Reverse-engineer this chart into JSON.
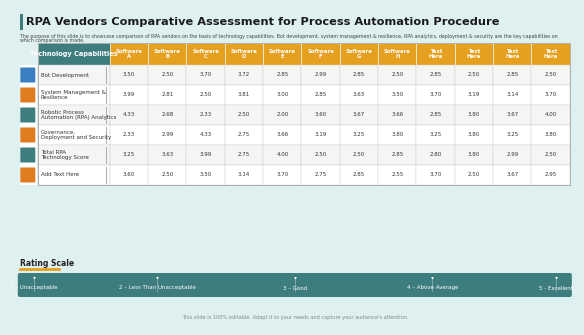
{
  "title": "RPA Vendors Comparative Assessment for Process Automation Procedure",
  "subtitle": "The purpose of this slide is to showcase comparison of RPA vendors on the basis of technology capabilities. Bot development, system management & resilience, RPA analytics, deployment & security are the key capabilities on which comparison is made.",
  "footer": "This slide is 100% editable. Adapt it to your needs and capture your audience's attention.",
  "col_headers": [
    "Technology Capabilities",
    "Software\nA",
    "Software\nB",
    "Software\nC",
    "Software\nD",
    "Software\nE",
    "Software\nF",
    "Software\nG",
    "Software\nH",
    "Text\nHere",
    "Text\nHere",
    "Text\nHere",
    "Text\nHere"
  ],
  "rows": [
    {
      "label": "Bot Development",
      "values": [
        3.5,
        2.5,
        3.7,
        3.72,
        2.85,
        2.99,
        2.85,
        2.5,
        2.85,
        2.5,
        2.85,
        2.5
      ]
    },
    {
      "label": "System Management &\nResilience",
      "values": [
        3.99,
        2.81,
        2.5,
        3.81,
        3.0,
        2.85,
        3.63,
        3.5,
        3.7,
        3.19,
        3.14,
        3.7
      ]
    },
    {
      "label": "Robotic Process\nAutomation (RPA) Analytics",
      "values": [
        4.33,
        2.68,
        2.33,
        2.5,
        2.0,
        3.6,
        3.67,
        3.66,
        2.85,
        3.8,
        3.67,
        4.0
      ]
    },
    {
      "label": "Governance,\nDeployment and Security",
      "values": [
        2.33,
        2.99,
        4.33,
        2.75,
        3.66,
        3.19,
        3.25,
        3.8,
        3.25,
        3.8,
        3.25,
        3.8
      ]
    },
    {
      "label": "Total RPA\nTechnology Score",
      "values": [
        3.25,
        3.63,
        3.99,
        2.75,
        4.0,
        2.5,
        2.5,
        2.85,
        2.8,
        3.8,
        2.99,
        2.5
      ]
    },
    {
      "label": "Add Text Here",
      "values": [
        3.6,
        2.5,
        3.5,
        3.14,
        3.7,
        2.75,
        2.85,
        2.55,
        3.7,
        2.5,
        3.67,
        2.95
      ]
    }
  ],
  "icon_colors": [
    "#3a7fc1",
    "#e07c20",
    "#3d7d7e",
    "#e07c20",
    "#3d7d7e",
    "#e07c20"
  ],
  "header_bg": "#e6a020",
  "first_col_bg": "#3d7d7e",
  "border_color": "#cccccc",
  "rating_scale_bg": "#3d7d7e",
  "rating_items": [
    "1 – Unacceptable",
    "2 – Less Than Unacceptable",
    "3 – Good",
    "4 – Above Average",
    "5 - Excellent"
  ],
  "rating_line_color": "#e6a020",
  "background_color": "#dff0f0",
  "table_bg_odd": "#f5f5f5",
  "table_bg_even": "#ffffff"
}
